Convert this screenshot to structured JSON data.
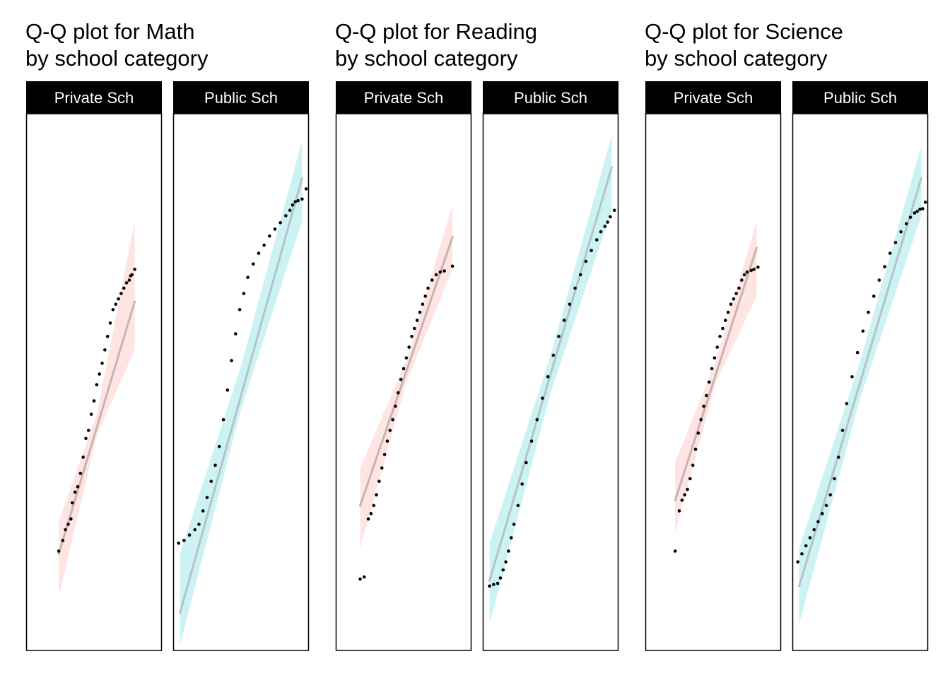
{
  "chart_data": [
    {
      "type": "scatter",
      "subject": "Math",
      "title_lines": [
        "Q-Q plot for Math",
        "by school category"
      ],
      "xlabel": "",
      "ylabel": "",
      "grid": false,
      "legend": "none",
      "colors": {
        "points": "#000000",
        "panel_border": "#000000",
        "strip_bg": "#000000",
        "strip_text": "#ffffff"
      },
      "ylim": [
        0,
        1
      ],
      "panels": [
        {
          "label": "Private Sch",
          "band_color": "#f8766d",
          "line_color": "#c8b3b3",
          "xlim": [
            0,
            1
          ],
          "reference_line": {
            "x": [
              0.24,
              0.8
            ],
            "y": [
              0.18,
              0.65
            ]
          },
          "band": [
            {
              "x": 0.24,
              "lo": 0.1,
              "hi": 0.24
            },
            {
              "x": 0.52,
              "lo": 0.4,
              "hi": 0.44
            },
            {
              "x": 0.8,
              "lo": 0.56,
              "hi": 0.8
            }
          ],
          "points": [
            [
              0.24,
              0.185
            ],
            [
              0.27,
              0.205
            ],
            [
              0.29,
              0.225
            ],
            [
              0.31,
              0.235
            ],
            [
              0.33,
              0.245
            ],
            [
              0.34,
              0.275
            ],
            [
              0.36,
              0.295
            ],
            [
              0.38,
              0.305
            ],
            [
              0.4,
              0.33
            ],
            [
              0.42,
              0.36
            ],
            [
              0.44,
              0.395
            ],
            [
              0.46,
              0.41
            ],
            [
              0.48,
              0.44
            ],
            [
              0.5,
              0.465
            ],
            [
              0.52,
              0.495
            ],
            [
              0.54,
              0.515
            ],
            [
              0.56,
              0.535
            ],
            [
              0.58,
              0.56
            ],
            [
              0.6,
              0.585
            ],
            [
              0.62,
              0.61
            ],
            [
              0.64,
              0.635
            ],
            [
              0.66,
              0.645
            ],
            [
              0.68,
              0.655
            ],
            [
              0.7,
              0.665
            ],
            [
              0.72,
              0.675
            ],
            [
              0.74,
              0.685
            ],
            [
              0.76,
              0.69
            ],
            [
              0.77,
              0.698
            ],
            [
              0.78,
              0.7
            ],
            [
              0.8,
              0.71
            ]
          ]
        },
        {
          "label": "Public Sch",
          "band_color": "#00bfc4",
          "line_color": "#b3c4c4",
          "xlim": [
            0,
            1
          ],
          "reference_line": {
            "x": [
              0.05,
              0.95
            ],
            "y": [
              0.07,
              0.88
            ]
          },
          "band": [
            {
              "x": 0.05,
              "lo": 0.01,
              "hi": 0.18
            },
            {
              "x": 0.5,
              "lo": 0.45,
              "hi": 0.53
            },
            {
              "x": 0.95,
              "lo": 0.8,
              "hi": 0.95
            }
          ],
          "points": [
            [
              0.04,
              0.2
            ],
            [
              0.08,
              0.205
            ],
            [
              0.12,
              0.215
            ],
            [
              0.16,
              0.225
            ],
            [
              0.19,
              0.235
            ],
            [
              0.22,
              0.26
            ],
            [
              0.25,
              0.285
            ],
            [
              0.28,
              0.315
            ],
            [
              0.31,
              0.345
            ],
            [
              0.34,
              0.38
            ],
            [
              0.37,
              0.43
            ],
            [
              0.4,
              0.485
            ],
            [
              0.43,
              0.54
            ],
            [
              0.46,
              0.59
            ],
            [
              0.49,
              0.635
            ],
            [
              0.52,
              0.665
            ],
            [
              0.55,
              0.695
            ],
            [
              0.59,
              0.72
            ],
            [
              0.63,
              0.74
            ],
            [
              0.67,
              0.755
            ],
            [
              0.71,
              0.772
            ],
            [
              0.75,
              0.785
            ],
            [
              0.79,
              0.797
            ],
            [
              0.83,
              0.81
            ],
            [
              0.86,
              0.82
            ],
            [
              0.88,
              0.83
            ],
            [
              0.9,
              0.836
            ],
            [
              0.92,
              0.838
            ],
            [
              0.95,
              0.841
            ],
            [
              0.98,
              0.86
            ]
          ]
        }
      ]
    },
    {
      "type": "scatter",
      "subject": "Reading",
      "title_lines": [
        "Q-Q plot for Reading",
        "by school category"
      ],
      "xlabel": "",
      "ylabel": "",
      "grid": false,
      "legend": "none",
      "colors": {
        "points": "#000000",
        "panel_border": "#000000",
        "strip_bg": "#000000",
        "strip_text": "#ffffff"
      },
      "ylim": [
        0,
        1
      ],
      "panels": [
        {
          "label": "Private Sch",
          "band_color": "#f8766d",
          "line_color": "#c8b3b3",
          "xlim": [
            0,
            1
          ],
          "reference_line": {
            "x": [
              0.18,
              0.86
            ],
            "y": [
              0.27,
              0.77
            ]
          },
          "band": [
            {
              "x": 0.18,
              "lo": 0.19,
              "hi": 0.34
            },
            {
              "x": 0.52,
              "lo": 0.5,
              "hi": 0.54
            },
            {
              "x": 0.86,
              "lo": 0.71,
              "hi": 0.83
            }
          ],
          "points": [
            [
              0.18,
              0.133
            ],
            [
              0.21,
              0.137
            ],
            [
              0.24,
              0.245
            ],
            [
              0.26,
              0.255
            ],
            [
              0.28,
              0.27
            ],
            [
              0.3,
              0.29
            ],
            [
              0.32,
              0.315
            ],
            [
              0.34,
              0.34
            ],
            [
              0.36,
              0.365
            ],
            [
              0.38,
              0.39
            ],
            [
              0.4,
              0.41
            ],
            [
              0.42,
              0.43
            ],
            [
              0.44,
              0.455
            ],
            [
              0.46,
              0.48
            ],
            [
              0.48,
              0.505
            ],
            [
              0.5,
              0.525
            ],
            [
              0.52,
              0.545
            ],
            [
              0.54,
              0.565
            ],
            [
              0.56,
              0.585
            ],
            [
              0.58,
              0.6
            ],
            [
              0.6,
              0.615
            ],
            [
              0.62,
              0.63
            ],
            [
              0.64,
              0.645
            ],
            [
              0.66,
              0.66
            ],
            [
              0.68,
              0.675
            ],
            [
              0.71,
              0.69
            ],
            [
              0.74,
              0.7
            ],
            [
              0.77,
              0.705
            ],
            [
              0.8,
              0.707
            ],
            [
              0.86,
              0.716
            ]
          ]
        },
        {
          "label": "Public Sch",
          "band_color": "#00bfc4",
          "line_color": "#b3c4c4",
          "xlim": [
            0,
            1
          ],
          "reference_line": {
            "x": [
              0.05,
              0.95
            ],
            "y": [
              0.13,
              0.9
            ]
          },
          "band": [
            {
              "x": 0.05,
              "lo": 0.05,
              "hi": 0.2
            },
            {
              "x": 0.5,
              "lo": 0.48,
              "hi": 0.55
            },
            {
              "x": 0.95,
              "lo": 0.82,
              "hi": 0.96
            }
          ],
          "points": [
            [
              0.05,
              0.12
            ],
            [
              0.08,
              0.123
            ],
            [
              0.11,
              0.125
            ],
            [
              0.13,
              0.135
            ],
            [
              0.15,
              0.15
            ],
            [
              0.17,
              0.165
            ],
            [
              0.19,
              0.185
            ],
            [
              0.21,
              0.21
            ],
            [
              0.23,
              0.235
            ],
            [
              0.26,
              0.27
            ],
            [
              0.29,
              0.31
            ],
            [
              0.32,
              0.35
            ],
            [
              0.36,
              0.39
            ],
            [
              0.4,
              0.43
            ],
            [
              0.44,
              0.47
            ],
            [
              0.48,
              0.51
            ],
            [
              0.52,
              0.55
            ],
            [
              0.56,
              0.585
            ],
            [
              0.6,
              0.615
            ],
            [
              0.64,
              0.645
            ],
            [
              0.68,
              0.675
            ],
            [
              0.72,
              0.7
            ],
            [
              0.76,
              0.725
            ],
            [
              0.8,
              0.745
            ],
            [
              0.84,
              0.765
            ],
            [
              0.87,
              0.78
            ],
            [
              0.9,
              0.79
            ],
            [
              0.92,
              0.798
            ],
            [
              0.94,
              0.808
            ],
            [
              0.97,
              0.82
            ]
          ]
        }
      ]
    },
    {
      "type": "scatter",
      "subject": "Science",
      "title_lines": [
        "Q-Q plot for Science",
        "by school category"
      ],
      "xlabel": "",
      "ylabel": "",
      "grid": false,
      "legend": "none",
      "colors": {
        "points": "#000000",
        "panel_border": "#000000",
        "strip_bg": "#000000",
        "strip_text": "#ffffff"
      },
      "ylim": [
        0,
        1
      ],
      "panels": [
        {
          "label": "Private Sch",
          "band_color": "#f8766d",
          "line_color": "#c8b3b3",
          "xlim": [
            0,
            1
          ],
          "reference_line": {
            "x": [
              0.22,
              0.82
            ],
            "y": [
              0.28,
              0.75
            ]
          },
          "band": [
            {
              "x": 0.22,
              "lo": 0.22,
              "hi": 0.35
            },
            {
              "x": 0.52,
              "lo": 0.5,
              "hi": 0.54
            },
            {
              "x": 0.82,
              "lo": 0.66,
              "hi": 0.8
            }
          ],
          "points": [
            [
              0.22,
              0.185
            ],
            [
              0.25,
              0.26
            ],
            [
              0.27,
              0.28
            ],
            [
              0.29,
              0.29
            ],
            [
              0.31,
              0.3
            ],
            [
              0.33,
              0.32
            ],
            [
              0.35,
              0.345
            ],
            [
              0.37,
              0.375
            ],
            [
              0.39,
              0.405
            ],
            [
              0.41,
              0.43
            ],
            [
              0.43,
              0.455
            ],
            [
              0.45,
              0.475
            ],
            [
              0.47,
              0.5
            ],
            [
              0.49,
              0.525
            ],
            [
              0.51,
              0.545
            ],
            [
              0.53,
              0.565
            ],
            [
              0.55,
              0.585
            ],
            [
              0.57,
              0.6
            ],
            [
              0.59,
              0.615
            ],
            [
              0.61,
              0.63
            ],
            [
              0.63,
              0.645
            ],
            [
              0.65,
              0.655
            ],
            [
              0.67,
              0.665
            ],
            [
              0.69,
              0.675
            ],
            [
              0.71,
              0.69
            ],
            [
              0.73,
              0.7
            ],
            [
              0.75,
              0.705
            ],
            [
              0.78,
              0.708
            ],
            [
              0.8,
              0.71
            ],
            [
              0.83,
              0.714
            ]
          ]
        },
        {
          "label": "Public Sch",
          "band_color": "#00bfc4",
          "line_color": "#b3c4c4",
          "xlim": [
            0,
            1
          ],
          "reference_line": {
            "x": [
              0.05,
              0.95
            ],
            "y": [
              0.12,
              0.88
            ]
          },
          "band": [
            {
              "x": 0.05,
              "lo": 0.05,
              "hi": 0.19
            },
            {
              "x": 0.5,
              "lo": 0.47,
              "hi": 0.54
            },
            {
              "x": 0.95,
              "lo": 0.81,
              "hi": 0.94
            }
          ],
          "points": [
            [
              0.04,
              0.165
            ],
            [
              0.07,
              0.18
            ],
            [
              0.1,
              0.195
            ],
            [
              0.13,
              0.21
            ],
            [
              0.16,
              0.225
            ],
            [
              0.19,
              0.24
            ],
            [
              0.22,
              0.255
            ],
            [
              0.25,
              0.27
            ],
            [
              0.28,
              0.29
            ],
            [
              0.31,
              0.32
            ],
            [
              0.34,
              0.36
            ],
            [
              0.37,
              0.41
            ],
            [
              0.4,
              0.46
            ],
            [
              0.44,
              0.51
            ],
            [
              0.48,
              0.555
            ],
            [
              0.52,
              0.595
            ],
            [
              0.56,
              0.63
            ],
            [
              0.6,
              0.66
            ],
            [
              0.64,
              0.69
            ],
            [
              0.68,
              0.715
            ],
            [
              0.72,
              0.74
            ],
            [
              0.76,
              0.76
            ],
            [
              0.8,
              0.78
            ],
            [
              0.84,
              0.795
            ],
            [
              0.87,
              0.807
            ],
            [
              0.9,
              0.815
            ],
            [
              0.92,
              0.818
            ],
            [
              0.94,
              0.822
            ],
            [
              0.96,
              0.823
            ],
            [
              0.98,
              0.835
            ]
          ]
        }
      ]
    }
  ]
}
